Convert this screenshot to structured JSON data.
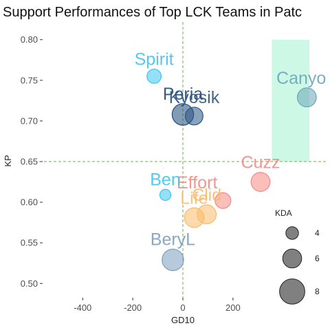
{
  "chart_data": {
    "type": "scatter",
    "title": "Support Performances of Top LCK Teams in Patc",
    "xlabel": "GD10",
    "ylabel": "KP",
    "xlim": [
      -560,
      560
    ],
    "ylim": [
      0.485,
      0.815
    ],
    "x_ticks": [
      -400,
      -200,
      0,
      200
    ],
    "x_tick_labels": [
      "-400",
      "-200",
      "0",
      "200"
    ],
    "y_ticks": [
      0.5,
      0.55,
      0.6,
      0.65,
      0.7,
      0.75,
      0.8
    ],
    "y_tick_labels": [
      "0.50",
      "0.55",
      "0.60",
      "0.65",
      "0.70",
      "0.75",
      "0.80"
    ],
    "grid": false,
    "reference_lines": {
      "x": 0,
      "y": 0.65,
      "color": "#6ab04c"
    },
    "highlight_region": {
      "x": [
        355,
        505
      ],
      "y": [
        0.65,
        0.8
      ],
      "color": "#b8f5dc"
    },
    "size_variable": "KDA",
    "points": [
      {
        "name": "Spirit",
        "x": -115,
        "y": 0.755,
        "kda": 4.5,
        "color": "#3ec4f0",
        "label_pos": "above"
      },
      {
        "name": "Canyo",
        "x": 495,
        "y": 0.729,
        "kda": 6.0,
        "color": "#6aa6b8",
        "label_pos": "above-left"
      },
      {
        "name": "Peria",
        "x": 0,
        "y": 0.708,
        "kda": 6.8,
        "color": "#1e4a78",
        "label_pos": "above"
      },
      {
        "name": "Kyosik",
        "x": 45,
        "y": 0.706,
        "kda": 5.6,
        "color": "#2b5585",
        "label_pos": "above"
      },
      {
        "name": "Cuzz",
        "x": 310,
        "y": 0.625,
        "kda": 6.0,
        "color": "#f58a84",
        "label_pos": "above"
      },
      {
        "name": "Effort",
        "x": 160,
        "y": 0.602,
        "kda": 5.0,
        "color": "#f58a84",
        "label_pos": "above-left"
      },
      {
        "name": "Ben",
        "x": -70,
        "y": 0.609,
        "kda": 3.5,
        "color": "#3ec4f0",
        "label_pos": "above"
      },
      {
        "name": "Clid",
        "x": 95,
        "y": 0.585,
        "kda": 6.0,
        "color": "#f9bb6a",
        "label_pos": "above"
      },
      {
        "name": "Life",
        "x": 45,
        "y": 0.581,
        "kda": 6.2,
        "color": "#f9bb6a",
        "label_pos": "above"
      },
      {
        "name": "BeryL",
        "x": -40,
        "y": 0.529,
        "kda": 6.8,
        "color": "#7a9fbd",
        "label_pos": "above"
      }
    ],
    "legend": {
      "title": "KDA",
      "position": "right",
      "entries": [
        {
          "label": "4",
          "kda": 4
        },
        {
          "label": "6",
          "kda": 6
        },
        {
          "label": "8",
          "kda": 8
        }
      ]
    }
  }
}
